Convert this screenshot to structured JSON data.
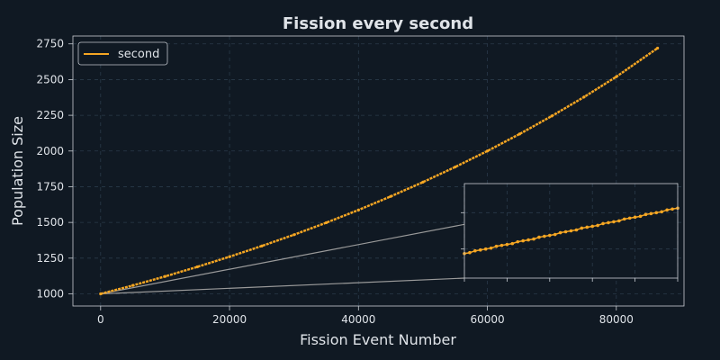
{
  "chart_data": {
    "type": "line",
    "title": "Fission every second",
    "xlabel": "Fission Event Number",
    "ylabel": "Population Size",
    "xlim": [
      -4300,
      90500
    ],
    "ylim": [
      915,
      2805
    ],
    "x_ticks": [
      0,
      20000,
      40000,
      60000,
      80000
    ],
    "y_ticks": [
      1000,
      1250,
      1500,
      1750,
      2000,
      2250,
      2500,
      2750
    ],
    "grid": true,
    "legend": "top-left",
    "series": [
      {
        "name": "second",
        "color": "#f5a623",
        "x": [
          0,
          5000,
          10000,
          15000,
          20000,
          25000,
          30000,
          35000,
          40000,
          45000,
          50000,
          55000,
          60000,
          65000,
          70000,
          75000,
          80000,
          86400
        ],
        "y": [
          1000,
          1059,
          1122,
          1189,
          1260,
          1335,
          1414,
          1498,
          1587,
          1682,
          1782,
          1888,
          2000,
          2119,
          2245,
          2378,
          2520,
          2720
        ]
      }
    ],
    "inset": {
      "location": "lower-right",
      "xlim": [
        0,
        1000
      ],
      "ylim": [
        998.8,
        1009.2
      ],
      "zoom_region_x": [
        0,
        1000
      ],
      "zoom_region_y": [
        1000,
        1012
      ],
      "x_ticks": [
        0,
        200,
        400,
        600,
        800,
        1000
      ],
      "y_ticks": [
        1002,
        1006
      ],
      "tick_labels_visible": false,
      "points_x": [
        0,
        25,
        50,
        75,
        100,
        125,
        150,
        175,
        200,
        225,
        250,
        275,
        300,
        325,
        350,
        375,
        400,
        425,
        450,
        475,
        500,
        525,
        550,
        575,
        600,
        625,
        650,
        675,
        700,
        725,
        750,
        775,
        800,
        825,
        850,
        875,
        900,
        925,
        950,
        975,
        1000
      ],
      "points_y": [
        1001.5,
        1001.6,
        1001.8,
        1001.9,
        1002.0,
        1002.1,
        1002.3,
        1002.4,
        1002.5,
        1002.6,
        1002.8,
        1002.9,
        1003.0,
        1003.1,
        1003.3,
        1003.4,
        1003.5,
        1003.6,
        1003.8,
        1003.9,
        1004.0,
        1004.1,
        1004.3,
        1004.4,
        1004.5,
        1004.6,
        1004.8,
        1004.9,
        1005.0,
        1005.1,
        1005.3,
        1005.4,
        1005.5,
        1005.6,
        1005.8,
        1005.9,
        1006.0,
        1006.1,
        1006.3,
        1006.4,
        1006.5
      ]
    }
  }
}
